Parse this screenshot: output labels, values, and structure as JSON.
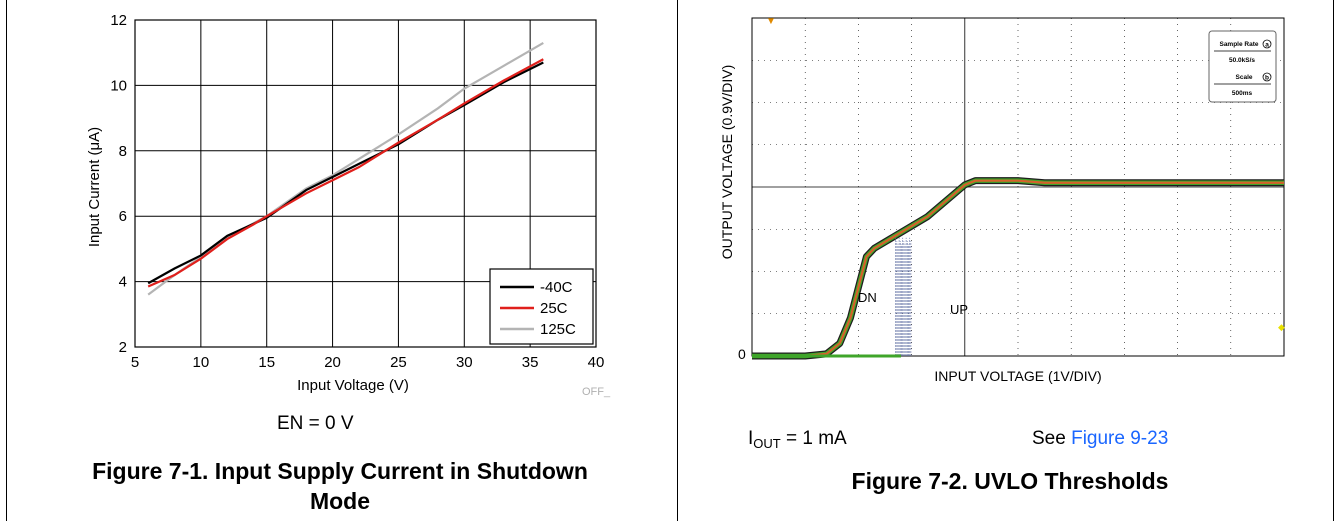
{
  "chart_data": [
    {
      "type": "line",
      "title": "",
      "xlabel": "Input Voltage (V)",
      "ylabel": "Input Current (μA)",
      "xlim": [
        5,
        40
      ],
      "ylim": [
        2,
        12
      ],
      "xticks": [
        "5",
        "10",
        "15",
        "20",
        "25",
        "30",
        "35",
        "40"
      ],
      "yticks": [
        "2",
        "4",
        "6",
        "8",
        "10",
        "12"
      ],
      "grid": true,
      "legend": "bottom-right",
      "watermark": "OFF_",
      "series": [
        {
          "name": "-40C",
          "color": "#000000",
          "x": [
            6,
            8,
            10,
            12,
            15,
            18,
            20,
            22,
            25,
            28,
            30,
            33,
            36
          ],
          "y": [
            3.95,
            4.4,
            4.8,
            5.4,
            5.95,
            6.8,
            7.2,
            7.6,
            8.2,
            8.95,
            9.4,
            10.1,
            10.7
          ]
        },
        {
          "name": "25C",
          "color": "#e0201c",
          "x": [
            6,
            8,
            10,
            12,
            14,
            15,
            18,
            20,
            22,
            25,
            28,
            30,
            33,
            36
          ],
          "y": [
            3.85,
            4.2,
            4.7,
            5.3,
            5.75,
            6.0,
            6.7,
            7.1,
            7.5,
            8.25,
            8.95,
            9.45,
            10.15,
            10.8
          ]
        },
        {
          "name": "125C",
          "color": "#b4b4b4",
          "x": [
            6,
            8,
            10,
            12,
            15,
            18,
            20,
            22,
            25,
            28,
            30,
            33,
            36
          ],
          "y": [
            3.6,
            4.2,
            4.75,
            5.35,
            6.0,
            6.85,
            7.25,
            7.75,
            8.5,
            9.3,
            9.9,
            10.6,
            11.3
          ]
        }
      ]
    },
    {
      "type": "line",
      "title": "",
      "xlabel": "INPUT VOLTAGE (1V/DIV)",
      "ylabel": "OUTPUT VOLTAGE (0.9V/DIV)",
      "zero_label": "0",
      "grid": true,
      "x_divisions": 10,
      "y_divisions": 8,
      "annotations": [
        "DN",
        "UP"
      ],
      "info_box": {
        "sample_rate_label": "Sample Rate",
        "sample_rate_marker": "a",
        "sample_rate_value": "50.0kS/s",
        "scale_label": "Scale",
        "scale_marker": "b",
        "scale_value": "500ms"
      },
      "series": [
        {
          "name": "DN",
          "x": [
            0,
            1.0,
            1.4,
            1.65,
            1.85,
            2.15,
            2.3,
            3.3,
            4.0,
            4.2,
            5.0,
            5.5,
            10
          ],
          "y": [
            0,
            0,
            0.05,
            0.3,
            0.9,
            2.35,
            2.55,
            3.3,
            4.05,
            4.15,
            4.15,
            4.1,
            4.1
          ]
        },
        {
          "name": "UP",
          "x": [
            2.8,
            2.8
          ],
          "y": [
            0,
            2.8
          ]
        }
      ]
    }
  ],
  "captions": {
    "left_condition": "EN = 0 V",
    "left_title_line1": "Figure 7-1. Input Supply Current in Shutdown",
    "left_title_line2": "Mode",
    "right_cond_i": "I",
    "right_cond_sub": "OUT",
    "right_cond_rest": " = 1 mA",
    "right_see": "See ",
    "right_link": "Figure 9-23",
    "right_title": "Figure 7-2. UVLO Thresholds"
  },
  "colors": {
    "trace_outer": "#1d1d1d",
    "trace_green": "#3fa52a",
    "trace_orange": "#d5612b",
    "up_trace": "#5a6aa0",
    "grid": "#000000",
    "link": "#1a66ff"
  }
}
